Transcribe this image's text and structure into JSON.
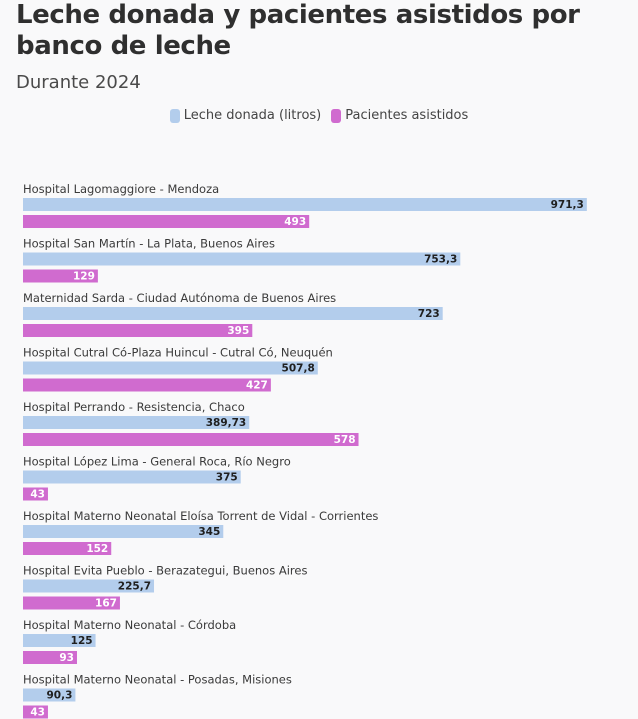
{
  "header": {
    "title": "Leche donada y pacientes asistidos por banco de leche",
    "subtitle": "Durante 2024"
  },
  "colors": {
    "leche": "#b3cdec",
    "pacientes": "#d06bcf",
    "background": "#f9f9fa"
  },
  "chart_data": {
    "type": "bar",
    "orientation": "horizontal",
    "title": "Leche donada y pacientes asistidos por banco de leche",
    "subtitle": "Durante 2024",
    "legend_position": "top-center",
    "grid": false,
    "categories": [
      "Hospital Lagomaggiore - Mendoza",
      "Hospital San Martín - La Plata, Buenos Aires",
      "Maternidad Sarda - Ciudad Autónoma de Buenos Aires",
      "Hospital Cutral Có-Plaza Huincul - Cutral Có, Neuquén",
      "Hospital Perrando - Resistencia, Chaco",
      "Hospital López Lima - General Roca, Río Negro",
      "Hospital Materno Neonatal Eloísa Torrent de Vidal - Corrientes",
      "Hospital Evita Pueblo - Berazategui, Buenos Aires",
      "Hospital Materno Neonatal - Córdoba",
      "Hospital Materno Neonatal - Posadas, Misiones"
    ],
    "series": [
      {
        "name": "Leche donada (litros)",
        "values": [
          971.3,
          753.3,
          723,
          507.8,
          389.73,
          375,
          345,
          225.7,
          125,
          90.3
        ],
        "labels": [
          "971,3",
          "753,3",
          "723",
          "507,8",
          "389,73",
          "375",
          "345",
          "225,7",
          "125",
          "90,3"
        ]
      },
      {
        "name": "Pacientes asistidos",
        "values": [
          493,
          129,
          395,
          427,
          578,
          43,
          152,
          167,
          93,
          43
        ],
        "labels": [
          "493",
          "129",
          "395",
          "427",
          "578",
          "43",
          "152",
          "167",
          "93",
          "43"
        ]
      }
    ],
    "xlim": [
      0,
      1000
    ]
  }
}
